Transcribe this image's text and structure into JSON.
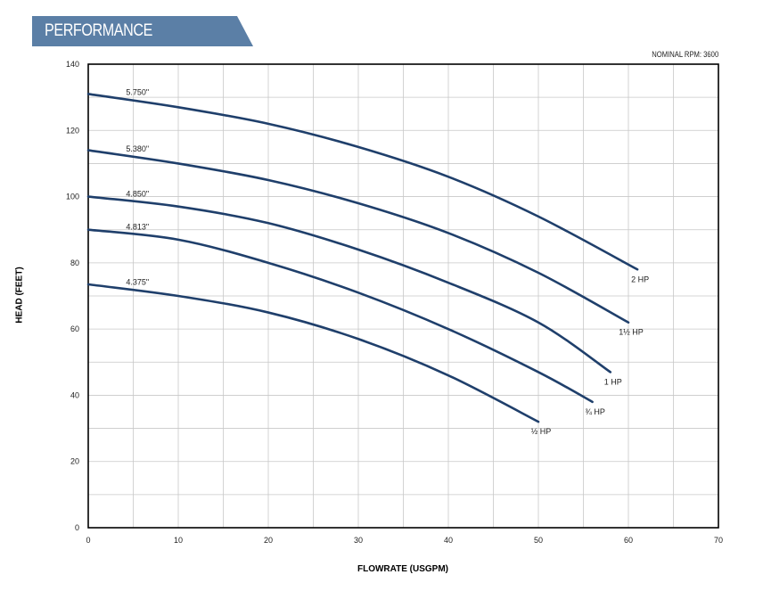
{
  "banner": {
    "title": "PERFORMANCE",
    "color": "#5b7fa6"
  },
  "nominal_rpm": "NOMINAL RPM: 3600",
  "chart_data": {
    "type": "line",
    "xlabel": "FLOWRATE (USGPM)",
    "ylabel": "HEAD (FEET)",
    "xlim": [
      0,
      70
    ],
    "ylim": [
      0,
      140
    ],
    "xticks": [
      0,
      10,
      20,
      30,
      40,
      50,
      60,
      70
    ],
    "yticks": [
      0,
      20,
      40,
      60,
      80,
      100,
      120,
      140
    ],
    "grid": true,
    "line_color": "#1f3f6b",
    "series": [
      {
        "name": "2 HP",
        "impeller": "5.750\"",
        "points": [
          [
            0,
            131
          ],
          [
            10,
            127
          ],
          [
            20,
            122
          ],
          [
            30,
            115
          ],
          [
            40,
            106
          ],
          [
            50,
            94
          ],
          [
            61,
            78
          ]
        ]
      },
      {
        "name": "1½ HP",
        "impeller": "5.380\"",
        "points": [
          [
            0,
            114
          ],
          [
            10,
            110
          ],
          [
            20,
            105
          ],
          [
            30,
            98
          ],
          [
            40,
            89
          ],
          [
            50,
            77
          ],
          [
            60,
            62
          ]
        ]
      },
      {
        "name": "1 HP",
        "impeller": "4.850\"",
        "points": [
          [
            0,
            100
          ],
          [
            10,
            97
          ],
          [
            20,
            92
          ],
          [
            30,
            84
          ],
          [
            40,
            74
          ],
          [
            50,
            62
          ],
          [
            58,
            47
          ]
        ]
      },
      {
        "name": "¾ HP",
        "impeller": "4.813\"",
        "points": [
          [
            0,
            90
          ],
          [
            10,
            87
          ],
          [
            20,
            80
          ],
          [
            30,
            71
          ],
          [
            40,
            60
          ],
          [
            50,
            47
          ],
          [
            56,
            38
          ]
        ]
      },
      {
        "name": "½ HP",
        "impeller": "4.375\"",
        "points": [
          [
            0,
            73.5
          ],
          [
            10,
            70
          ],
          [
            20,
            65
          ],
          [
            30,
            57
          ],
          [
            40,
            46
          ],
          [
            50,
            32
          ]
        ]
      }
    ]
  }
}
